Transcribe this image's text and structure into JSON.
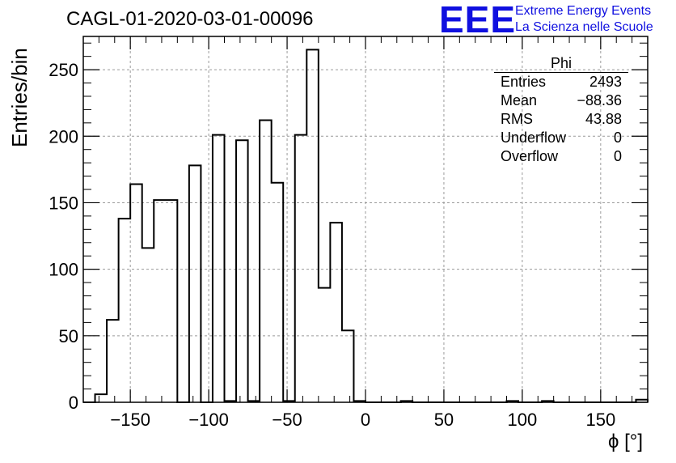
{
  "header": {
    "title": "CAGL-01-2020-03-01-00096",
    "logo_text": "EEE",
    "logo_line1": "Extreme Energy Events",
    "logo_line2": "La Scienza nelle Scuole",
    "logo_color": "#1010e0"
  },
  "stats_box": {
    "name": "Phi",
    "rows": [
      {
        "label": "Entries",
        "value": "2493"
      },
      {
        "label": "Mean",
        "value": "−88.36"
      },
      {
        "label": "RMS",
        "value": "43.88"
      },
      {
        "label": "Underflow",
        "value": "0"
      },
      {
        "label": "Overflow",
        "value": "0"
      }
    ]
  },
  "chart_data": {
    "type": "bar",
    "style": "step-histogram",
    "ylabel": "Entries/bin",
    "xlabel": "ϕ [°]",
    "xlim": [
      -180,
      180
    ],
    "ylim": [
      0,
      275
    ],
    "bin_width": 7.5,
    "x_ticks": [
      -150,
      -100,
      -50,
      0,
      50,
      100,
      150
    ],
    "y_ticks": [
      0,
      50,
      100,
      150,
      200,
      250
    ],
    "grid": true,
    "bins": [
      {
        "x0": -180,
        "x1": -172.5,
        "value": 0
      },
      {
        "x0": -172.5,
        "x1": -165,
        "value": 6
      },
      {
        "x0": -165,
        "x1": -157.5,
        "value": 62
      },
      {
        "x0": -157.5,
        "x1": -150,
        "value": 138
      },
      {
        "x0": -150,
        "x1": -142.5,
        "value": 164
      },
      {
        "x0": -142.5,
        "x1": -135,
        "value": 116
      },
      {
        "x0": -135,
        "x1": -127.5,
        "value": 152
      },
      {
        "x0": -127.5,
        "x1": -120,
        "value": 152
      },
      {
        "x0": -120,
        "x1": -112.5,
        "value": 0
      },
      {
        "x0": -112.5,
        "x1": -105,
        "value": 178
      },
      {
        "x0": -105,
        "x1": -97.5,
        "value": 0
      },
      {
        "x0": -97.5,
        "x1": -90,
        "value": 201
      },
      {
        "x0": -90,
        "x1": -82.5,
        "value": 1
      },
      {
        "x0": -82.5,
        "x1": -75,
        "value": 197
      },
      {
        "x0": -75,
        "x1": -67.5,
        "value": 1
      },
      {
        "x0": -67.5,
        "x1": -60,
        "value": 212
      },
      {
        "x0": -60,
        "x1": -52.5,
        "value": 165
      },
      {
        "x0": -52.5,
        "x1": -45,
        "value": 1
      },
      {
        "x0": -45,
        "x1": -37.5,
        "value": 201
      },
      {
        "x0": -37.5,
        "x1": -30,
        "value": 265
      },
      {
        "x0": -30,
        "x1": -22.5,
        "value": 86
      },
      {
        "x0": -22.5,
        "x1": -15,
        "value": 135
      },
      {
        "x0": -15,
        "x1": -7.5,
        "value": 54
      },
      {
        "x0": -7.5,
        "x1": 0,
        "value": 1
      },
      {
        "x0": 0,
        "x1": 7.5,
        "value": 0
      },
      {
        "x0": 7.5,
        "x1": 15,
        "value": 0
      },
      {
        "x0": 15,
        "x1": 22.5,
        "value": 0
      },
      {
        "x0": 22.5,
        "x1": 30,
        "value": 1
      },
      {
        "x0": 30,
        "x1": 37.5,
        "value": 0
      },
      {
        "x0": 37.5,
        "x1": 45,
        "value": 0
      },
      {
        "x0": 45,
        "x1": 52.5,
        "value": 0
      },
      {
        "x0": 52.5,
        "x1": 60,
        "value": 0
      },
      {
        "x0": 60,
        "x1": 67.5,
        "value": 0
      },
      {
        "x0": 67.5,
        "x1": 75,
        "value": 0
      },
      {
        "x0": 75,
        "x1": 82.5,
        "value": 0
      },
      {
        "x0": 82.5,
        "x1": 90,
        "value": 0
      },
      {
        "x0": 90,
        "x1": 97.5,
        "value": 1
      },
      {
        "x0": 97.5,
        "x1": 105,
        "value": 0
      },
      {
        "x0": 105,
        "x1": 112.5,
        "value": 0
      },
      {
        "x0": 112.5,
        "x1": 120,
        "value": 1
      },
      {
        "x0": 120,
        "x1": 127.5,
        "value": 0
      },
      {
        "x0": 127.5,
        "x1": 135,
        "value": 0
      },
      {
        "x0": 135,
        "x1": 142.5,
        "value": 0
      },
      {
        "x0": 142.5,
        "x1": 150,
        "value": 0
      },
      {
        "x0": 150,
        "x1": 157.5,
        "value": 0
      },
      {
        "x0": 157.5,
        "x1": 165,
        "value": 0
      },
      {
        "x0": 165,
        "x1": 172.5,
        "value": 0
      },
      {
        "x0": 172.5,
        "x1": 180,
        "value": 2
      }
    ]
  }
}
